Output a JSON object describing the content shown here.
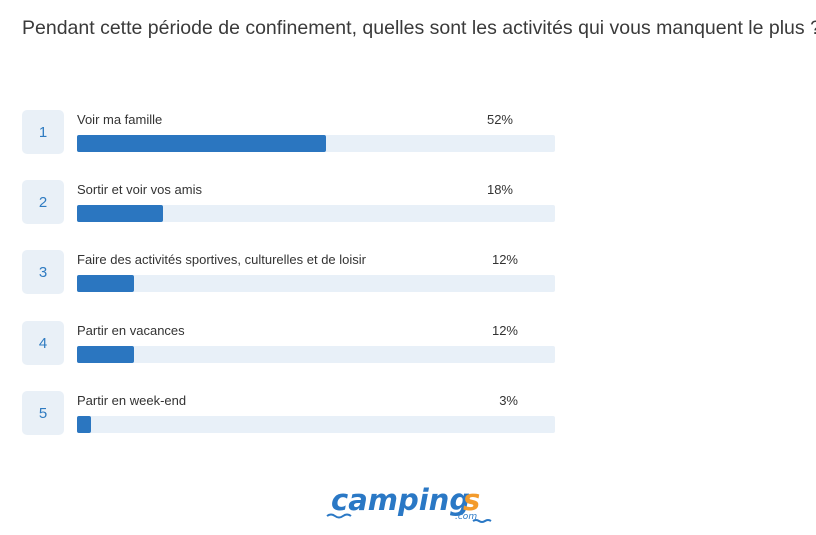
{
  "question": "Pendant cette période de confinement, quelles sont les activités qui vous manquent le plus ?",
  "chart_data": {
    "type": "bar",
    "orientation": "horizontal",
    "title": "Pendant cette période de confinement, quelles sont les activités qui vous manquent le plus ?",
    "unit": "%",
    "xlim": [
      0,
      100
    ],
    "categories": [
      "Voir ma famille",
      "Sortir et voir vos amis",
      "Faire des activités sportives, culturelles et de loisir",
      "Partir en vacances",
      "Partir en week-end"
    ],
    "values": [
      52,
      18,
      12,
      12,
      3
    ],
    "items": [
      {
        "rank": "1",
        "label": "Voir ma famille",
        "value": 52,
        "pct_label": "52%"
      },
      {
        "rank": "2",
        "label": "Sortir et voir vos amis",
        "value": 18,
        "pct_label": "18%"
      },
      {
        "rank": "3",
        "label": "Faire des activités sportives, culturelles et de loisir",
        "value": 12,
        "pct_label": "12%"
      },
      {
        "rank": "4",
        "label": "Partir en vacances",
        "value": 12,
        "pct_label": "12%"
      },
      {
        "rank": "5",
        "label": "Partir en week-end",
        "value": 3,
        "pct_label": "3%"
      }
    ]
  },
  "colors": {
    "bar": "#2b76c0",
    "track": "#e8f0f8",
    "rank_bg": "#e9f0f7",
    "rank_text": "#2f7bc1",
    "logo_blue": "#2a78c5",
    "logo_orange": "#f39b2c"
  },
  "logo": {
    "text": "camping",
    "accent": "s",
    "suffix": ".com"
  }
}
